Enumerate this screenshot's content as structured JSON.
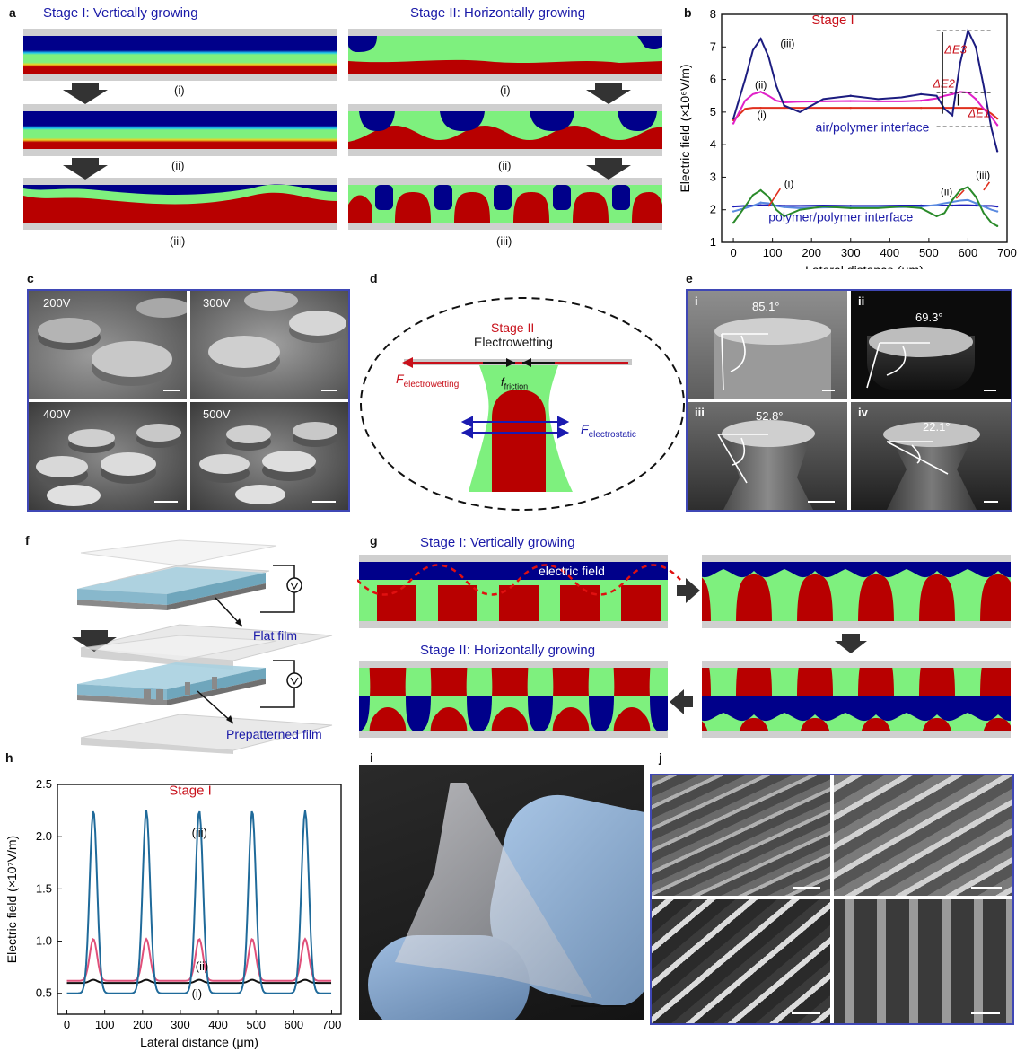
{
  "panels": {
    "a": "a",
    "b": "b",
    "c": "c",
    "d": "d",
    "e": "e",
    "f": "f",
    "g": "g",
    "h": "h",
    "i": "i",
    "j": "j"
  },
  "panel_a": {
    "stage1_title": "Stage I: Vertically growing",
    "stage2_title": "Stage II: Horizontally growing",
    "roman": [
      "(i)",
      "(ii)",
      "(iii)"
    ]
  },
  "panel_c": {
    "voltages": [
      "200V",
      "300V",
      "400V",
      "500V"
    ]
  },
  "panel_d": {
    "stage": "Stage II",
    "title": "Electrowetting",
    "f_electrowetting": "F",
    "f_electrowetting_sub": "electrowetting",
    "f_friction": "f",
    "f_friction_sub": "friction",
    "f_electrostatic": "F",
    "f_electrostatic_sub": "electrostatic"
  },
  "panel_e": {
    "tiles": [
      {
        "num": "i",
        "angle": "85.1°"
      },
      {
        "num": "ii",
        "angle": "69.3°"
      },
      {
        "num": "iii",
        "angle": "52.8°"
      },
      {
        "num": "iv",
        "angle": "22.1°"
      }
    ]
  },
  "panel_f": {
    "flat": "Flat film",
    "prepatterned": "Prepatterned film"
  },
  "panel_g": {
    "stage1_title": "Stage I: Vertically growing",
    "stage2_title": "Stage II: Horizontally growing",
    "field_label": "electric field"
  },
  "chart_data": [
    {
      "panel": "b",
      "type": "line",
      "title": "Stage I",
      "xlabel": "Lateral distance (μm)",
      "ylabel": "Electric field (×10⁶V/m)",
      "xlim": [
        -30,
        700
      ],
      "ylim": [
        1,
        8
      ],
      "xticks": [
        0,
        100,
        200,
        300,
        400,
        500,
        600,
        700
      ],
      "yticks": [
        1,
        2,
        3,
        4,
        5,
        6,
        7,
        8
      ],
      "annotations": [
        "air/polymer interface",
        "polymer/polymer interface",
        "ΔE3",
        "ΔE2",
        "ΔE1",
        "(i)",
        "(ii)",
        "(iii)"
      ],
      "x": [
        0,
        30,
        50,
        70,
        90,
        110,
        130,
        170,
        230,
        300,
        370,
        430,
        480,
        520,
        540,
        560,
        580,
        600,
        620,
        640,
        660,
        675
      ],
      "series": [
        {
          "name": "(i)",
          "color": "#e0301e",
          "values": [
            4.75,
            5.1,
            5.13,
            5.13,
            5.13,
            5.13,
            5.13,
            5.13,
            5.13,
            5.13,
            5.13,
            5.13,
            5.13,
            5.13,
            5.13,
            5.13,
            5.13,
            5.13,
            5.13,
            5.1,
            4.95,
            4.8
          ]
        },
        {
          "name": "(ii)",
          "color": "#e020c8",
          "values": [
            4.65,
            5.35,
            5.55,
            5.62,
            5.5,
            5.35,
            5.3,
            5.32,
            5.33,
            5.34,
            5.33,
            5.33,
            5.35,
            5.42,
            5.5,
            5.55,
            5.62,
            5.6,
            5.4,
            5.1,
            4.85,
            4.6
          ]
        },
        {
          "name": "(iii)",
          "color": "#1c1c80",
          "values": [
            4.8,
            6.0,
            6.9,
            7.25,
            6.7,
            5.8,
            5.2,
            5.0,
            5.4,
            5.5,
            5.4,
            5.45,
            5.55,
            5.5,
            5.1,
            4.9,
            6.5,
            7.5,
            7.0,
            5.8,
            4.5,
            3.8
          ]
        },
        {
          "name": "pp (i)",
          "color": "#1c1cb8",
          "values": [
            2.1,
            2.12,
            2.13,
            2.14,
            2.14,
            2.13,
            2.12,
            2.12,
            2.13,
            2.12,
            2.12,
            2.13,
            2.13,
            2.13,
            2.13,
            2.13,
            2.14,
            2.14,
            2.13,
            2.12,
            2.12,
            2.1
          ]
        },
        {
          "name": "pp (ii)",
          "color": "#5a8ae0",
          "values": [
            1.95,
            2.05,
            2.12,
            2.22,
            2.2,
            2.12,
            2.08,
            2.05,
            2.07,
            2.08,
            2.08,
            2.08,
            2.1,
            2.15,
            2.2,
            2.24,
            2.28,
            2.3,
            2.2,
            2.1,
            2.0,
            1.95
          ]
        },
        {
          "name": "pp (iii)",
          "color": "#2a8a2a",
          "values": [
            1.6,
            2.1,
            2.45,
            2.6,
            2.4,
            2.0,
            1.8,
            2.0,
            2.1,
            2.05,
            2.05,
            2.1,
            2.05,
            1.8,
            1.9,
            2.3,
            2.6,
            2.7,
            2.4,
            1.9,
            1.6,
            1.5
          ]
        }
      ]
    },
    {
      "panel": "h",
      "type": "line",
      "title": "Stage I",
      "xlabel": "Lateral distance (μm)",
      "ylabel": "Electric field (×10⁷V/m)",
      "xlim": [
        -25,
        725
      ],
      "ylim": [
        0.3,
        2.5
      ],
      "xticks": [
        0,
        100,
        200,
        300,
        400,
        500,
        600,
        700
      ],
      "yticks": [
        0.5,
        1.0,
        1.5,
        2.0,
        2.5
      ],
      "annotations": [
        "(i)",
        "(ii)",
        "(iii)"
      ],
      "peaks_x": [
        70,
        210,
        350,
        490,
        630
      ],
      "series": [
        {
          "name": "(i)",
          "color": "#111111",
          "baseline": 0.6,
          "peak": 0.63
        },
        {
          "name": "(ii)",
          "color": "#e0507a",
          "baseline": 0.62,
          "peak": 1.02
        },
        {
          "name": "(iii)",
          "color": "#1f6a9a",
          "baseline": 0.5,
          "peak": 2.25
        }
      ]
    }
  ]
}
